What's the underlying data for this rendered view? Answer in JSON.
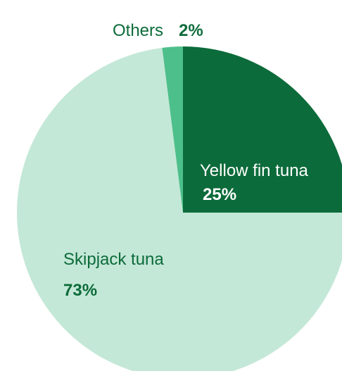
{
  "chart_data": {
    "type": "pie",
    "title": "",
    "slices": [
      {
        "label": "Yellow fin tuna",
        "value": 25,
        "value_label": "25%",
        "color": "#0c6b3a",
        "text_color": "#ffffff"
      },
      {
        "label": "Skipjack tuna",
        "value": 73,
        "value_label": "73%",
        "color": "#c4e8d7",
        "text_color": "#0c6b3a"
      },
      {
        "label": "Others",
        "value": 2,
        "value_label": "2%",
        "color": "#4dbf8a",
        "text_color": "#0c6b3a"
      }
    ],
    "start_angle_deg": 0,
    "direction": "clockwise",
    "legend": "none"
  }
}
